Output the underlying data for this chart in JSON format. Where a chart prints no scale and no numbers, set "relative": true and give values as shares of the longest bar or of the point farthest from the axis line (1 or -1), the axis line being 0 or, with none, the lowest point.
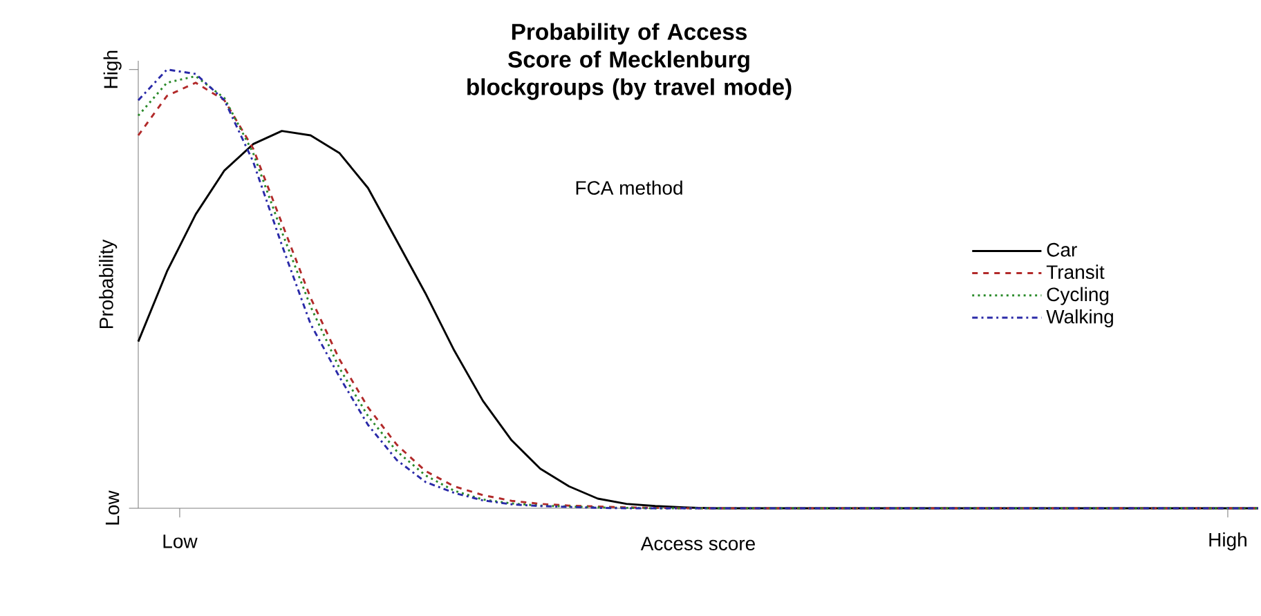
{
  "chart_data": {
    "type": "line",
    "title": "Probability of Access Score of Mecklenburg blockgroups (by travel mode)",
    "subtitle": "FCA method",
    "xlabel": "Access score",
    "ylabel": "Probability",
    "relative": true,
    "annotations": [
      "Low",
      "High",
      "Low",
      "High"
    ],
    "legend": "right",
    "categories": [
      null,
      null,
      null,
      null,
      null,
      null,
      null,
      null,
      null,
      null,
      null,
      null,
      null,
      null,
      null,
      null,
      null,
      null,
      null,
      null,
      null,
      null,
      null,
      null,
      null,
      null,
      null,
      null,
      null,
      null,
      null,
      null,
      null,
      null,
      null,
      null,
      null,
      null,
      null,
      null
    ],
    "series": [
      {
        "name": "Car",
        "color": "#000000",
        "line_style": "solid",
        "values": [
          0.38,
          0.54,
          0.67,
          0.77,
          0.83,
          0.86,
          0.85,
          0.81,
          0.73,
          0.61,
          0.49,
          0.36,
          0.245,
          0.155,
          0.09,
          0.05,
          0.022,
          0.01,
          0.005,
          0.002,
          0,
          0,
          0,
          0,
          0,
          0,
          0,
          0,
          0,
          0,
          0,
          0,
          0,
          0,
          0,
          0,
          0,
          0,
          0,
          0
        ]
      },
      {
        "name": "Transit",
        "color": "#b22a2a",
        "line_style": "dashed",
        "values": [
          0.85,
          0.94,
          0.97,
          0.93,
          0.82,
          0.65,
          0.48,
          0.34,
          0.23,
          0.145,
          0.085,
          0.05,
          0.03,
          0.017,
          0.01,
          0.006,
          0.004,
          0.002,
          0.001,
          0,
          0,
          0,
          0,
          0,
          0,
          0,
          0,
          0,
          0,
          0,
          0,
          0,
          0,
          0,
          0,
          0,
          0,
          0,
          0,
          0
        ]
      },
      {
        "name": "Cycling",
        "color": "#2a8a2a",
        "line_style": "dotted",
        "values": [
          0.895,
          0.97,
          0.985,
          0.935,
          0.81,
          0.63,
          0.46,
          0.32,
          0.21,
          0.13,
          0.075,
          0.04,
          0.02,
          0.011,
          0.006,
          0.004,
          0.002,
          0.001,
          0,
          0,
          0,
          0,
          0,
          0,
          0,
          0,
          0,
          0,
          0,
          0,
          0,
          0,
          0,
          0,
          0,
          0,
          0,
          0,
          0,
          0
        ]
      },
      {
        "name": "Walking",
        "color": "#2a2aa8",
        "line_style": "dashdot",
        "values": [
          0.93,
          1.0,
          0.99,
          0.93,
          0.79,
          0.6,
          0.42,
          0.3,
          0.19,
          0.11,
          0.06,
          0.035,
          0.018,
          0.009,
          0.005,
          0.003,
          0.001,
          0,
          0,
          0,
          0,
          0,
          0,
          0,
          0,
          0,
          0,
          0,
          0,
          0,
          0,
          0,
          0,
          0,
          0,
          0,
          0,
          0,
          0,
          0
        ]
      }
    ]
  }
}
